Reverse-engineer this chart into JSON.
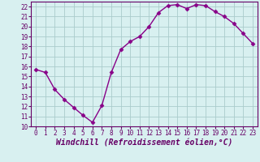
{
  "x": [
    0,
    1,
    2,
    3,
    4,
    5,
    6,
    7,
    8,
    9,
    10,
    11,
    12,
    13,
    14,
    15,
    16,
    17,
    18,
    19,
    20,
    21,
    22,
    23
  ],
  "y": [
    15.7,
    15.4,
    13.7,
    12.7,
    11.9,
    11.1,
    10.4,
    12.1,
    15.4,
    17.7,
    18.5,
    19.0,
    20.0,
    21.4,
    22.1,
    22.2,
    21.8,
    22.2,
    22.1,
    21.5,
    21.0,
    20.3,
    19.3,
    18.3
  ],
  "line_color": "#880088",
  "marker": "D",
  "marker_size": 2.5,
  "bg_color": "#d8f0f0",
  "grid_color": "#aacccc",
  "xlabel": "Windchill (Refroidissement éolien,°C)",
  "xlim": [
    -0.5,
    23.5
  ],
  "ylim": [
    10,
    22.5
  ],
  "yticks": [
    10,
    11,
    12,
    13,
    14,
    15,
    16,
    17,
    18,
    19,
    20,
    21,
    22
  ],
  "xticks": [
    0,
    1,
    2,
    3,
    4,
    5,
    6,
    7,
    8,
    9,
    10,
    11,
    12,
    13,
    14,
    15,
    16,
    17,
    18,
    19,
    20,
    21,
    22,
    23
  ],
  "tick_label_size": 5.5,
  "xlabel_size": 7.0,
  "line_width": 1.0,
  "spine_color": "#660066"
}
